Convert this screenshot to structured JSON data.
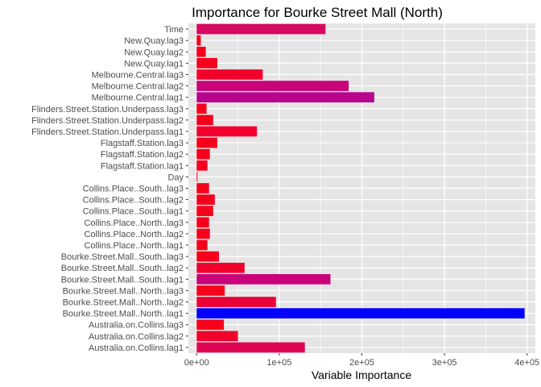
{
  "chart_data": {
    "type": "bar",
    "orientation": "horizontal",
    "title": "Importance for Bourke Street Mall (North)",
    "xlabel": "Variable Importance",
    "ylabel": "",
    "xlim": [
      -10000,
      410000
    ],
    "x_ticks": [
      {
        "value": 0,
        "label": "0e+00"
      },
      {
        "value": 100000,
        "label": "1e+05"
      },
      {
        "value": 200000,
        "label": "2e+05"
      },
      {
        "value": 300000,
        "label": "3e+05"
      },
      {
        "value": 400000,
        "label": "4e+05"
      }
    ],
    "grid": true,
    "panel_background": "#e5e5e5",
    "categories": [
      "Time",
      "New.Quay.lag3",
      "New.Quay.lag2",
      "New.Quay.lag1",
      "Melbourne.Central.lag3",
      "Melbourne.Central.lag2",
      "Melbourne.Central.lag1",
      "Flinders.Street.Station.Underpass.lag3",
      "Flinders.Street.Station.Underpass.lag2",
      "Flinders.Street.Station.Underpass.lag1",
      "Flagstaff.Station.lag3",
      "Flagstaff.Station.lag2",
      "Flagstaff.Station.lag1",
      "Day",
      "Collins.Place..South..lag3",
      "Collins.Place..South..lag2",
      "Collins.Place..South..lag1",
      "Collins.Place..North..lag3",
      "Collins.Place..North..lag2",
      "Collins.Place..North..lag1",
      "Bourke.Street.Mall..South..lag3",
      "Bourke.Street.Mall..South..lag2",
      "Bourke.Street.Mall..South..lag1",
      "Bourke.Street.Mall..North..lag3",
      "Bourke.Street.Mall..North..lag2",
      "Bourke.Street.Mall..North..lag1",
      "Australia.on.Collins.lag3",
      "Australia.on.Collins.lag2",
      "Australia.on.Collins.lag1"
    ],
    "values": [
      156000,
      5000,
      11000,
      25000,
      80000,
      184000,
      215000,
      12000,
      20000,
      73000,
      25000,
      16000,
      13000,
      1000,
      15000,
      22000,
      20000,
      15000,
      16000,
      13000,
      27000,
      58000,
      162000,
      34000,
      96000,
      397000,
      33000,
      50000,
      131000
    ],
    "colors": [
      "#d7085f",
      "#f6001c",
      "#f6001c",
      "#f6001c",
      "#f1002c",
      "#c9037a",
      "#b7068d",
      "#f6001c",
      "#f6001c",
      "#f1002c",
      "#f6001c",
      "#f6001c",
      "#f6001c",
      "#f6001c",
      "#f6001c",
      "#f6001c",
      "#f6001c",
      "#f6001c",
      "#f6001c",
      "#f6001c",
      "#f6001c",
      "#f1002c",
      "#c9037a",
      "#f6001c",
      "#ea0038",
      "#0000ff",
      "#f6001c",
      "#f1002c",
      "#df0552"
    ]
  }
}
